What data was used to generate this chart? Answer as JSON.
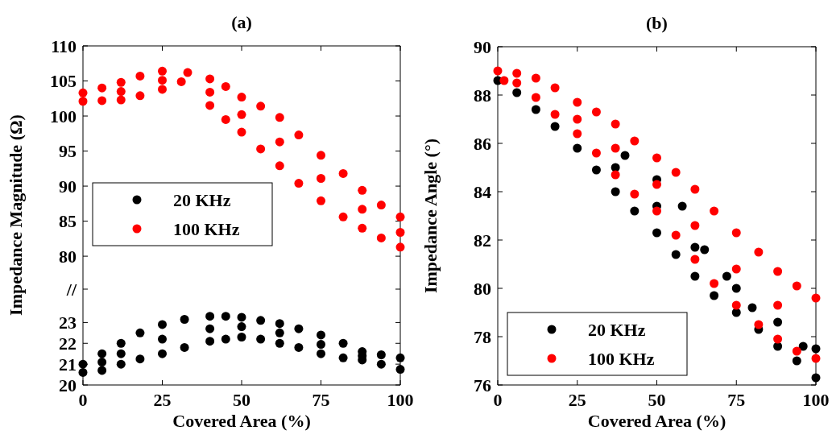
{
  "chart_data": [
    {
      "type": "scatter",
      "title": "(a)",
      "ylabel": "Impedance Magnitude (Ω)",
      "xlim": [
        0,
        100
      ],
      "xticks": [
        0,
        25,
        50,
        75,
        100
      ],
      "tick_labels": "y",
      "ylim": [
        75.3,
        110
      ],
      "yticks": [
        80,
        85,
        90,
        95,
        100,
        105,
        110
      ],
      "legend": "bottom left",
      "marker": "circle",
      "series": [
        {
          "name": "20 KHz",
          "color": "#000000"
        },
        {
          "name": "100 KHz",
          "color": "#ff0000",
          "x": [
            0,
            6,
            12,
            18,
            25,
            33,
            40,
            45,
            50,
            56,
            62,
            68,
            75,
            82,
            88,
            94,
            100,
            0,
            6,
            12,
            18,
            25,
            31,
            40,
            45,
            50,
            56,
            62,
            68,
            75,
            82,
            88,
            94,
            100,
            12,
            25,
            40,
            50,
            62,
            75,
            88,
            100
          ],
          "values": [
            103.3,
            104.0,
            104.8,
            105.7,
            106.4,
            106.2,
            105.3,
            104.2,
            102.7,
            101.4,
            99.8,
            97.3,
            94.4,
            91.8,
            89.4,
            87.3,
            85.6,
            102.1,
            102.2,
            102.3,
            102.9,
            103.8,
            104.9,
            101.5,
            99.5,
            97.7,
            95.3,
            92.9,
            90.4,
            87.9,
            85.6,
            84.0,
            82.6,
            81.3,
            103.5,
            105.1,
            103.4,
            100.2,
            96.3,
            91.1,
            86.7,
            83.4
          ]
        }
      ]
    },
    {
      "type": "scatter",
      "xlabel": "Covered Area (%)",
      "xlim": [
        0,
        100
      ],
      "xticks": [
        0,
        25,
        50,
        75,
        100
      ],
      "ylim": [
        20,
        24.6
      ],
      "yticks": [
        20,
        21,
        22,
        23,
        {
          "value": 24.6,
          "label": "//"
        }
      ],
      "marker": "circle",
      "series": [
        {
          "color": "#000000",
          "x": [
            0,
            6,
            12,
            18,
            25,
            32,
            40,
            45,
            50,
            56,
            62,
            68,
            75,
            82,
            88,
            94,
            100,
            0,
            6,
            12,
            18,
            25,
            32,
            40,
            45,
            50,
            56,
            62,
            68,
            75,
            82,
            88,
            94,
            100,
            6,
            12,
            25,
            40,
            50,
            62,
            75,
            88
          ],
          "values": [
            21.0,
            21.5,
            22.0,
            22.5,
            22.9,
            23.15,
            23.3,
            23.3,
            23.25,
            23.1,
            22.95,
            22.7,
            22.4,
            22.0,
            21.6,
            21.45,
            21.3,
            20.6,
            20.7,
            21.0,
            21.25,
            21.5,
            21.8,
            22.1,
            22.2,
            22.3,
            22.2,
            22.0,
            21.8,
            21.5,
            21.3,
            21.2,
            21.0,
            20.75,
            21.1,
            21.5,
            22.2,
            22.7,
            22.8,
            22.5,
            21.95,
            21.4
          ]
        }
      ]
    },
    {
      "type": "scatter",
      "title": "(b)",
      "xlabel": "Covered Area (%)",
      "ylabel": "Impedance Angle (°)",
      "xlim": [
        0,
        100
      ],
      "xticks": [
        0,
        25,
        50,
        75,
        100
      ],
      "ylim": [
        76,
        90
      ],
      "yticks": [
        76,
        78,
        80,
        82,
        84,
        86,
        88,
        90
      ],
      "legend": "bottom left",
      "marker": "circle",
      "series": [
        {
          "name": "20 KHz",
          "color": "#000000",
          "x": [
            0,
            6,
            12,
            18,
            25,
            31,
            37,
            43,
            50,
            56,
            62,
            68,
            75,
            82,
            88,
            94,
            100,
            37,
            50,
            62,
            75,
            88,
            100,
            40,
            50,
            58,
            65,
            72,
            80,
            96
          ],
          "values": [
            88.6,
            88.1,
            87.4,
            86.7,
            85.8,
            84.9,
            84.0,
            83.2,
            82.3,
            81.4,
            80.5,
            79.7,
            79.0,
            78.3,
            77.6,
            77.0,
            76.3,
            85.0,
            83.4,
            81.7,
            80.0,
            78.6,
            77.5,
            85.5,
            84.5,
            83.4,
            81.6,
            80.5,
            79.2,
            77.6
          ]
        },
        {
          "name": "100 KHz",
          "color": "#ff0000",
          "x": [
            0,
            6,
            12,
            18,
            25,
            31,
            37,
            43,
            50,
            56,
            62,
            68,
            75,
            82,
            88,
            94,
            100,
            2,
            6,
            12,
            18,
            25,
            31,
            37,
            43,
            50,
            56,
            62,
            68,
            75,
            82,
            88,
            94,
            100,
            25,
            37,
            50,
            62,
            75,
            88
          ],
          "values": [
            89.0,
            88.9,
            88.7,
            88.3,
            87.7,
            87.3,
            86.8,
            86.1,
            85.4,
            84.8,
            84.1,
            83.2,
            82.3,
            81.5,
            80.7,
            80.1,
            79.6,
            88.6,
            88.5,
            87.9,
            87.2,
            86.4,
            85.6,
            84.7,
            83.9,
            83.2,
            82.2,
            81.2,
            80.2,
            79.3,
            78.5,
            77.9,
            77.4,
            77.1,
            87.0,
            85.8,
            84.3,
            82.6,
            80.8,
            79.3
          ]
        }
      ]
    }
  ]
}
